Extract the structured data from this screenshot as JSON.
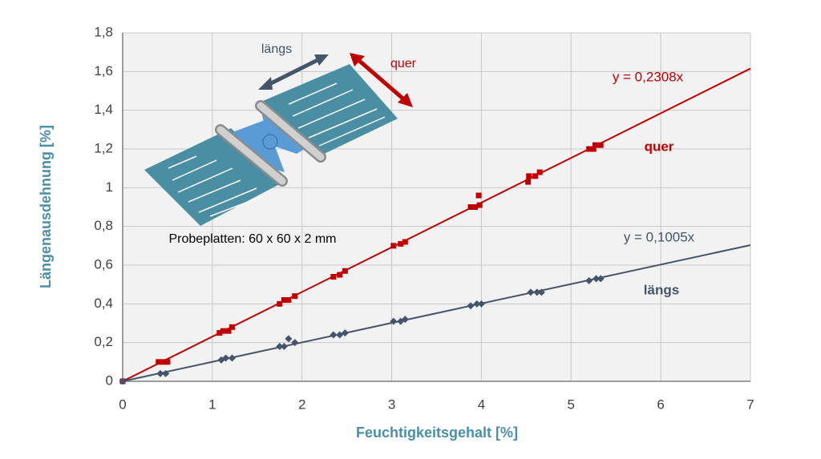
{
  "chart_data": {
    "type": "scatter",
    "x_label": "Feuchtigkeitsgehalt [%]",
    "y_label": "Längenausdehnung [%]",
    "xlim": [
      0,
      7
    ],
    "ylim": [
      0,
      1.8
    ],
    "xticks": [
      0,
      1,
      2,
      3,
      4,
      5,
      6,
      7
    ],
    "yticks": [
      0,
      {
        "value": 0.2,
        "label": "0,2"
      },
      {
        "value": 0.4,
        "label": "0,4"
      },
      {
        "value": 0.6,
        "label": "0,6"
      },
      {
        "value": 0.8,
        "label": "0,8"
      },
      1,
      {
        "value": 1.2,
        "label": "1,2"
      },
      {
        "value": 1.4,
        "label": "1,4"
      },
      {
        "value": 1.6,
        "label": "1,6"
      },
      {
        "value": 1.8,
        "label": "1,8"
      }
    ],
    "grid": true,
    "series": [
      {
        "name": "quer",
        "color": "#c00000",
        "marker": "square",
        "x": [
          0,
          0.4,
          0.45,
          0.5,
          1.08,
          1.12,
          1.18,
          1.22,
          1.75,
          1.8,
          1.85,
          1.92,
          2.35,
          2.42,
          2.48,
          3.02,
          3.1,
          3.15,
          3.88,
          3.93,
          3.97,
          3.98,
          4.52,
          4.53,
          4.6,
          4.65,
          5.2,
          5.25,
          5.27,
          5.33
        ],
        "values": [
          0,
          0.1,
          0.1,
          0.1,
          0.25,
          0.26,
          0.26,
          0.28,
          0.4,
          0.42,
          0.42,
          0.44,
          0.54,
          0.55,
          0.57,
          0.7,
          0.71,
          0.72,
          0.9,
          0.9,
          0.96,
          0.91,
          1.03,
          1.06,
          1.06,
          1.08,
          1.2,
          1.2,
          1.22,
          1.22
        ],
        "trendline": {
          "label": "y = 0,2308x",
          "slope": 0.2308
        }
      },
      {
        "name": "längs",
        "color": "#44546a",
        "marker": "diamond",
        "x": [
          0,
          0.42,
          0.48,
          1.1,
          1.15,
          1.22,
          1.75,
          1.8,
          1.85,
          1.92,
          2.35,
          2.42,
          2.48,
          3.02,
          3.1,
          3.15,
          3.88,
          3.95,
          4.0,
          4.55,
          4.62,
          4.67,
          5.2,
          5.28,
          5.33
        ],
        "values": [
          0,
          0.04,
          0.04,
          0.11,
          0.12,
          0.12,
          0.18,
          0.18,
          0.22,
          0.2,
          0.24,
          0.24,
          0.25,
          0.31,
          0.31,
          0.32,
          0.39,
          0.4,
          0.4,
          0.46,
          0.46,
          0.46,
          0.52,
          0.53,
          0.53
        ],
        "trendline": {
          "label": "y = 0,1005x",
          "slope": 0.1005
        }
      }
    ],
    "annotations": [
      "Probeplatten: 60 x 60 x 2 mm",
      "längs",
      "quer"
    ]
  }
}
